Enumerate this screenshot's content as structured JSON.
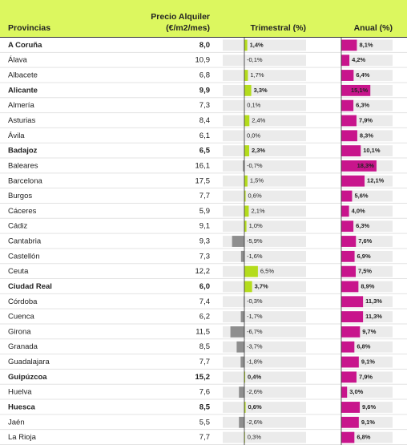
{
  "header": {
    "provincias": "Provincias",
    "precio": [
      "Precio Alquiler",
      "(€/m2/mes)"
    ],
    "trimestral": "Trimestral (%)",
    "anual": "Anual (%)"
  },
  "table": {
    "rows": [
      {
        "provincia": "A Coruña",
        "precio": "8,0",
        "trimestral": {
          "value": 1.4,
          "label": "1,4%"
        },
        "anual": {
          "value": 8.1,
          "label": "8,1%"
        },
        "bold": true
      },
      {
        "provincia": "Álava",
        "precio": "10,9",
        "trimestral": {
          "value": -0.1,
          "label": "-0,1%"
        },
        "anual": {
          "value": 4.2,
          "label": "4,2%"
        },
        "bold": false
      },
      {
        "provincia": "Albacete",
        "precio": "6,8",
        "trimestral": {
          "value": 1.7,
          "label": "1,7%"
        },
        "anual": {
          "value": 6.4,
          "label": "6,4%"
        },
        "bold": false
      },
      {
        "provincia": "Alicante",
        "precio": "9,9",
        "trimestral": {
          "value": 3.3,
          "label": "3,3%"
        },
        "anual": {
          "value": 15.1,
          "label": "15,1%"
        },
        "bold": true
      },
      {
        "provincia": "Almería",
        "precio": "7,3",
        "trimestral": {
          "value": 0.1,
          "label": "0,1%"
        },
        "anual": {
          "value": 6.3,
          "label": "6,3%"
        },
        "bold": false
      },
      {
        "provincia": "Asturias",
        "precio": "8,4",
        "trimestral": {
          "value": 2.4,
          "label": "2,4%"
        },
        "anual": {
          "value": 7.9,
          "label": "7,9%"
        },
        "bold": false
      },
      {
        "provincia": "Ávila",
        "precio": "6,1",
        "trimestral": {
          "value": 0.0,
          "label": "0,0%"
        },
        "anual": {
          "value": 8.3,
          "label": "8,3%"
        },
        "bold": false
      },
      {
        "provincia": "Badajoz",
        "precio": "6,5",
        "trimestral": {
          "value": 2.3,
          "label": "2,3%"
        },
        "anual": {
          "value": 10.1,
          "label": "10,1%"
        },
        "bold": true
      },
      {
        "provincia": "Baleares",
        "precio": "16,1",
        "trimestral": {
          "value": -0.7,
          "label": "-0,7%"
        },
        "anual": {
          "value": 18.3,
          "label": "18,3%"
        },
        "bold": false
      },
      {
        "provincia": "Barcelona",
        "precio": "17,5",
        "trimestral": {
          "value": 1.5,
          "label": "1,5%"
        },
        "anual": {
          "value": 12.1,
          "label": "12,1%"
        },
        "bold": false
      },
      {
        "provincia": "Burgos",
        "precio": "7,7",
        "trimestral": {
          "value": 0.6,
          "label": "0,6%"
        },
        "anual": {
          "value": 5.6,
          "label": "5,6%"
        },
        "bold": false
      },
      {
        "provincia": "Cáceres",
        "precio": "5,9",
        "trimestral": {
          "value": 2.1,
          "label": "2,1%"
        },
        "anual": {
          "value": 4.0,
          "label": "4,0%"
        },
        "bold": false
      },
      {
        "provincia": "Cádiz",
        "precio": "9,1",
        "trimestral": {
          "value": 1.0,
          "label": "1,0%"
        },
        "anual": {
          "value": 6.3,
          "label": "6,3%"
        },
        "bold": false
      },
      {
        "provincia": "Cantabria",
        "precio": "9,3",
        "trimestral": {
          "value": -5.9,
          "label": "-5,9%"
        },
        "anual": {
          "value": 7.6,
          "label": "7,6%"
        },
        "bold": false
      },
      {
        "provincia": "Castellón",
        "precio": "7,3",
        "trimestral": {
          "value": -1.6,
          "label": "-1,6%"
        },
        "anual": {
          "value": 6.9,
          "label": "6,9%"
        },
        "bold": false
      },
      {
        "provincia": "Ceuta",
        "precio": "12,2",
        "trimestral": {
          "value": 6.5,
          "label": "6,5%"
        },
        "anual": {
          "value": 7.5,
          "label": "7,5%"
        },
        "bold": false
      },
      {
        "provincia": "Ciudad Real",
        "precio": "6,0",
        "trimestral": {
          "value": 3.7,
          "label": "3,7%"
        },
        "anual": {
          "value": 8.9,
          "label": "8,9%"
        },
        "bold": true
      },
      {
        "provincia": "Córdoba",
        "precio": "7,4",
        "trimestral": {
          "value": -0.3,
          "label": "-0,3%"
        },
        "anual": {
          "value": 11.3,
          "label": "11,3%"
        },
        "bold": false
      },
      {
        "provincia": "Cuenca",
        "precio": "6,2",
        "trimestral": {
          "value": -1.7,
          "label": "-1,7%"
        },
        "anual": {
          "value": 11.3,
          "label": "11,3%"
        },
        "bold": false
      },
      {
        "provincia": "Girona",
        "precio": "11,5",
        "trimestral": {
          "value": -6.7,
          "label": "-6,7%"
        },
        "anual": {
          "value": 9.7,
          "label": "9,7%"
        },
        "bold": false
      },
      {
        "provincia": "Granada",
        "precio": "8,5",
        "trimestral": {
          "value": -3.7,
          "label": "-3,7%"
        },
        "anual": {
          "value": 6.8,
          "label": "6,8%"
        },
        "bold": false
      },
      {
        "provincia": "Guadalajara",
        "precio": "7,7",
        "trimestral": {
          "value": -1.8,
          "label": "-1,8%"
        },
        "anual": {
          "value": 9.1,
          "label": "9,1%"
        },
        "bold": false
      },
      {
        "provincia": "Guipúzcoa",
        "precio": "15,2",
        "trimestral": {
          "value": 0.4,
          "label": "0,4%"
        },
        "anual": {
          "value": 7.9,
          "label": "7,9%"
        },
        "bold": true
      },
      {
        "provincia": "Huelva",
        "precio": "7,6",
        "trimestral": {
          "value": -2.6,
          "label": "-2,6%"
        },
        "anual": {
          "value": 3.0,
          "label": "3,0%"
        },
        "bold": false
      },
      {
        "provincia": "Huesca",
        "precio": "8,5",
        "trimestral": {
          "value": 0.6,
          "label": "0,6%"
        },
        "anual": {
          "value": 9.6,
          "label": "9,6%"
        },
        "bold": true
      },
      {
        "provincia": "Jaén",
        "precio": "5,5",
        "trimestral": {
          "value": -2.6,
          "label": "-2,6%"
        },
        "anual": {
          "value": 9.1,
          "label": "9,1%"
        },
        "bold": false
      },
      {
        "provincia": "La Rioja",
        "precio": "7,7",
        "trimestral": {
          "value": 0.3,
          "label": "0,3%"
        },
        "anual": {
          "value": 6.8,
          "label": "6,8%"
        },
        "bold": false
      }
    ]
  }
}
